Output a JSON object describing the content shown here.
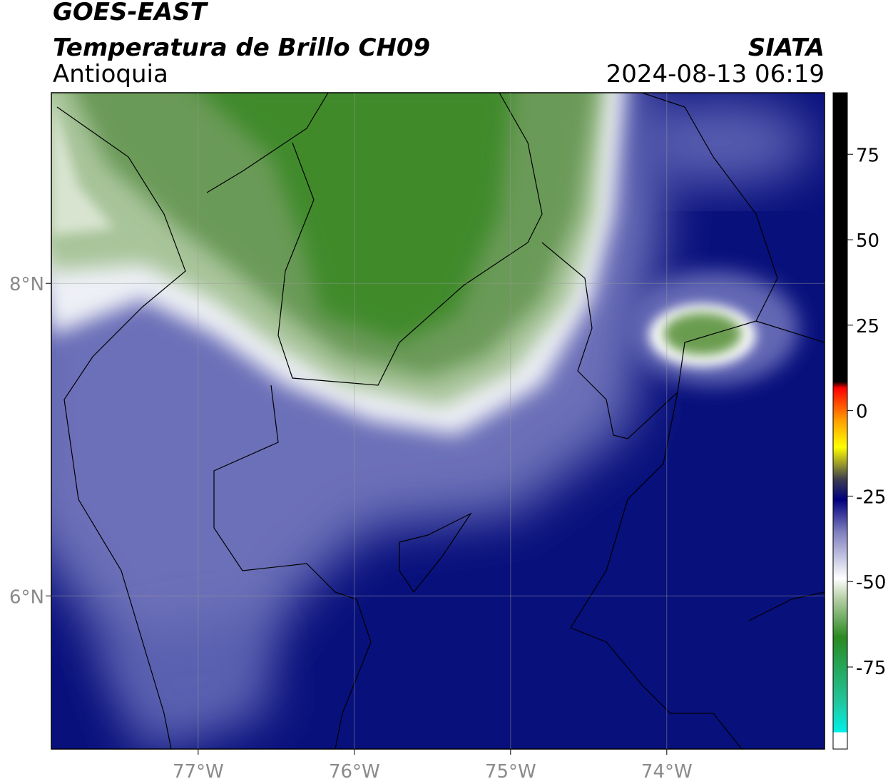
{
  "map": {
    "title": "GOES-EAST",
    "subtitle": "Temperatura de Brillo CH09",
    "region": "Antioquia",
    "source": "SIATA",
    "datetime": "2024-08-13 06:19",
    "lonlim": [
      -77.94,
      -72.99
    ],
    "latlim": [
      5.02,
      9.22
    ],
    "lonticks": [
      {
        "value": -77,
        "label": "77°W"
      },
      {
        "value": -76,
        "label": "76°W"
      },
      {
        "value": -75,
        "label": "75°W"
      },
      {
        "value": -74,
        "label": "74°W"
      }
    ],
    "latticks": [
      {
        "value": 6,
        "label": "6°N"
      },
      {
        "value": 8,
        "label": "8°N"
      }
    ],
    "colorbar": {
      "lim": [
        -99,
        93
      ],
      "ticks": [
        -75,
        -50,
        -25,
        0,
        25,
        50,
        75
      ]
    }
  }
}
